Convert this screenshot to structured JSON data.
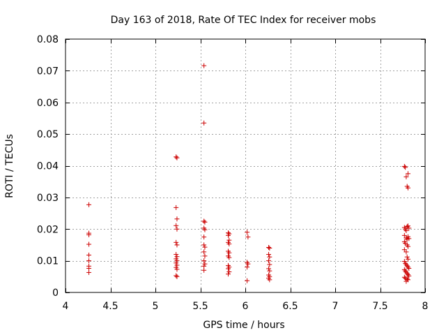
{
  "chart_data": {
    "type": "scatter",
    "title": "Day 163 of 2018, Rate Of TEC Index for receiver mobs",
    "xlabel": "GPS time / hours",
    "ylabel": "ROTI / TECUs",
    "xlim": [
      4,
      8
    ],
    "ylim": [
      0,
      0.08
    ],
    "xticks": [
      4,
      4.5,
      5,
      5.5,
      6,
      6.5,
      7,
      7.5,
      8
    ],
    "xtick_labels": [
      "4",
      "4.5",
      "5",
      "5.5",
      "6",
      "6.5",
      "7",
      "7.5",
      "8"
    ],
    "yticks": [
      0,
      0.01,
      0.02,
      0.03,
      0.04,
      0.05,
      0.06,
      0.07,
      0.08
    ],
    "ytick_labels": [
      "0",
      "0.01",
      "0.02",
      "0.03",
      "0.04",
      "0.05",
      "0.06",
      "0.07",
      "0.08"
    ],
    "grid": true,
    "marker": "+",
    "marker_color": "#cc0000",
    "grid_color": "#a0a0a0",
    "series": [
      {
        "name": "ROTI",
        "points": [
          [
            4.26,
            0.0277
          ],
          [
            4.26,
            0.0187
          ],
          [
            4.26,
            0.0182
          ],
          [
            4.26,
            0.0152
          ],
          [
            4.26,
            0.0118
          ],
          [
            4.26,
            0.01
          ],
          [
            4.26,
            0.0083
          ],
          [
            4.26,
            0.0076
          ],
          [
            4.26,
            0.0063
          ],
          [
            5.23,
            0.0428
          ],
          [
            5.24,
            0.0425
          ],
          [
            5.23,
            0.0268
          ],
          [
            5.24,
            0.0232
          ],
          [
            5.23,
            0.0211
          ],
          [
            5.24,
            0.02
          ],
          [
            5.23,
            0.0158
          ],
          [
            5.24,
            0.015
          ],
          [
            5.23,
            0.012
          ],
          [
            5.24,
            0.0113
          ],
          [
            5.23,
            0.0106
          ],
          [
            5.24,
            0.01
          ],
          [
            5.23,
            0.0093
          ],
          [
            5.24,
            0.0086
          ],
          [
            5.23,
            0.0079
          ],
          [
            5.24,
            0.0073
          ],
          [
            5.23,
            0.0053
          ],
          [
            5.24,
            0.005
          ],
          [
            5.54,
            0.0716
          ],
          [
            5.54,
            0.0535
          ],
          [
            5.54,
            0.0225
          ],
          [
            5.55,
            0.0222
          ],
          [
            5.54,
            0.0203
          ],
          [
            5.55,
            0.0198
          ],
          [
            5.54,
            0.0175
          ],
          [
            5.54,
            0.015
          ],
          [
            5.55,
            0.0143
          ],
          [
            5.54,
            0.0128
          ],
          [
            5.55,
            0.0115
          ],
          [
            5.54,
            0.01
          ],
          [
            5.55,
            0.009
          ],
          [
            5.54,
            0.0083
          ],
          [
            5.54,
            0.007
          ],
          [
            5.81,
            0.0188
          ],
          [
            5.82,
            0.0185
          ],
          [
            5.81,
            0.018
          ],
          [
            5.82,
            0.0165
          ],
          [
            5.81,
            0.0158
          ],
          [
            5.82,
            0.0153
          ],
          [
            5.81,
            0.013
          ],
          [
            5.82,
            0.0125
          ],
          [
            5.81,
            0.0115
          ],
          [
            5.82,
            0.011
          ],
          [
            5.81,
            0.0085
          ],
          [
            5.82,
            0.008
          ],
          [
            5.81,
            0.0075
          ],
          [
            5.82,
            0.0065
          ],
          [
            5.81,
            0.0058
          ],
          [
            6.02,
            0.019
          ],
          [
            6.03,
            0.0175
          ],
          [
            6.02,
            0.0095
          ],
          [
            6.03,
            0.009
          ],
          [
            6.02,
            0.008
          ],
          [
            6.02,
            0.0037
          ],
          [
            6.26,
            0.0142
          ],
          [
            6.27,
            0.014
          ],
          [
            6.26,
            0.012
          ],
          [
            6.27,
            0.0112
          ],
          [
            6.26,
            0.01
          ],
          [
            6.27,
            0.0088
          ],
          [
            6.26,
            0.0075
          ],
          [
            6.27,
            0.0068
          ],
          [
            6.26,
            0.0055
          ],
          [
            6.27,
            0.005
          ],
          [
            6.26,
            0.0045
          ],
          [
            6.27,
            0.004
          ],
          [
            7.77,
            0.0398
          ],
          [
            7.78,
            0.0395
          ],
          [
            7.79,
            0.0365
          ],
          [
            7.81,
            0.0375
          ],
          [
            7.8,
            0.0335
          ],
          [
            7.81,
            0.033
          ],
          [
            7.77,
            0.0205
          ],
          [
            7.78,
            0.02
          ],
          [
            7.79,
            0.0195
          ],
          [
            7.8,
            0.0208
          ],
          [
            7.81,
            0.021
          ],
          [
            7.82,
            0.0203
          ],
          [
            7.77,
            0.018
          ],
          [
            7.79,
            0.0172
          ],
          [
            7.8,
            0.0168
          ],
          [
            7.81,
            0.0176
          ],
          [
            7.82,
            0.017
          ],
          [
            7.77,
            0.016
          ],
          [
            7.78,
            0.0155
          ],
          [
            7.8,
            0.015
          ],
          [
            7.81,
            0.0145
          ],
          [
            7.77,
            0.0135
          ],
          [
            7.79,
            0.0128
          ],
          [
            7.8,
            0.0112
          ],
          [
            7.81,
            0.0105
          ],
          [
            7.77,
            0.0098
          ],
          [
            7.78,
            0.0092
          ],
          [
            7.79,
            0.0088
          ],
          [
            7.8,
            0.0084
          ],
          [
            7.81,
            0.008
          ],
          [
            7.82,
            0.0076
          ],
          [
            7.77,
            0.0072
          ],
          [
            7.78,
            0.0068
          ],
          [
            7.79,
            0.0064
          ],
          [
            7.8,
            0.006
          ],
          [
            7.81,
            0.0056
          ],
          [
            7.82,
            0.0052
          ],
          [
            7.77,
            0.0048
          ],
          [
            7.78,
            0.0045
          ],
          [
            7.8,
            0.0042
          ],
          [
            7.81,
            0.004
          ],
          [
            7.79,
            0.0035
          ]
        ]
      }
    ]
  }
}
